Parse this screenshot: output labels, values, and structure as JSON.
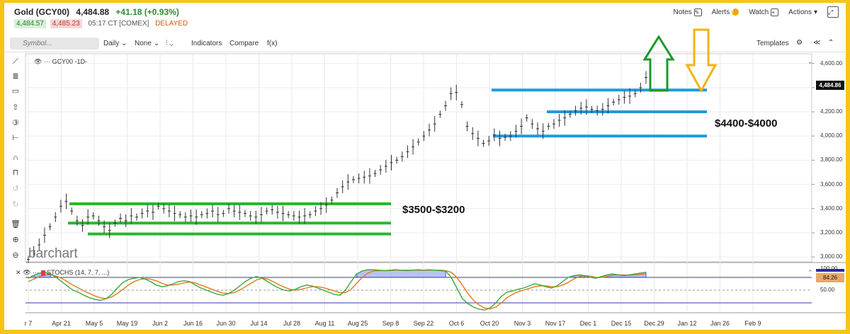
{
  "header": {
    "symbol_title": "Gold (GCY00)",
    "last_price": "4,484.88",
    "change": "+41.18 (+0.93%)",
    "bid": "4,484.57",
    "ask": "4,485.23",
    "time_exchange": "05:17 CT [COMEX]",
    "status": "DELAYED",
    "notes_label": "Notes",
    "alerts_label": "Alerts",
    "alerts_badge": "!",
    "watch_label": "Watch",
    "actions_label": "Actions"
  },
  "toolbar": {
    "symbol_placeholder": "Symbol...",
    "interval": "Daily",
    "compare_type": "None",
    "indicators_label": "Indicators",
    "compare_label": "Compare",
    "fx_label": "f(x)",
    "templates_label": "Templates"
  },
  "main_legend": "GCY00 -1D-",
  "stoch_legend": "STOCHS (14, 7, 7, ...)",
  "watermark": "barchart",
  "price_axis": [
    "4,600.00",
    "4,400.00",
    "4,200.00",
    "4,000.00",
    "3,800.00",
    "3,600.00",
    "3,400.00",
    "3,200.00",
    "3,000.00"
  ],
  "last_tag": "4,484.86",
  "stoch_axis": [
    "100.00",
    "50.00"
  ],
  "stoch_tag": "84.26",
  "annotations": {
    "range_low": "$3500-$3200",
    "range_high": "$4400-$4000"
  },
  "colors": {
    "green_band": "#2db52d",
    "blue_band": "#1e9be0",
    "up_arrow": "#1a9a2a",
    "down_arrow": "#f2b315",
    "stoch_k": "#3aa83a",
    "stoch_d": "#e07b1a",
    "overbought_fill": "#a8b4f0",
    "frame": "#f5c518"
  },
  "chart_data": {
    "type": "line",
    "x_ticks": [
      "r 7",
      "Apr 21",
      "May 5",
      "May 19",
      "Jun 2",
      "Jun 16",
      "Jun 30",
      "Jul 14",
      "Jul 28",
      "Aug 11",
      "Aug 25",
      "Sep 8",
      "Sep 22",
      "Oct 6",
      "Oct 20",
      "Nov 3",
      "Nov 17",
      "Dec 1",
      "Dec 15",
      "Dec 29",
      "Jan 12",
      "Jan 26",
      "Feb 9"
    ],
    "ylim": [
      2960,
      4680
    ],
    "series": [
      {
        "values": [
          2980,
          3050,
          3100,
          3180,
          3250,
          3330,
          3420,
          3460,
          3380,
          3300,
          3260,
          3330,
          3340,
          3300,
          3250,
          3220,
          3280,
          3320,
          3300,
          3340,
          3330,
          3360,
          3380,
          3370,
          3420,
          3400,
          3380,
          3360,
          3350,
          3330,
          3340,
          3330,
          3350,
          3360,
          3380,
          3350,
          3360,
          3400,
          3380,
          3370,
          3360,
          3340,
          3330,
          3350,
          3380,
          3390,
          3370,
          3360,
          3350,
          3340,
          3330,
          3340,
          3350,
          3380,
          3400,
          3430,
          3470,
          3530,
          3580,
          3620,
          3640,
          3650,
          3660,
          3670,
          3690,
          3720,
          3750,
          3780,
          3800,
          3830,
          3870,
          3910,
          3950,
          4000,
          4050,
          4100,
          4180,
          4250,
          4350,
          4360,
          4260,
          4080,
          4020,
          3980,
          3940,
          3960,
          4010,
          3980,
          3990,
          4000,
          4040,
          4080,
          4150,
          4100,
          4060,
          4040,
          4080,
          4100,
          4130,
          4150,
          4180,
          4210,
          4230,
          4240,
          4220,
          4210,
          4220,
          4250,
          4280,
          4300,
          4320,
          4330,
          4350,
          4400,
          4484
        ]
      }
    ],
    "support_resistance": {
      "green_levels": [
        3440,
        3280,
        3190
      ],
      "blue_levels": [
        4380,
        4200,
        4000
      ]
    },
    "stochastics": {
      "ylim": [
        0,
        100
      ],
      "reference_levels": [
        80,
        50,
        20
      ],
      "k": [
        78,
        85,
        90,
        92,
        88,
        80,
        70,
        60,
        50,
        45,
        38,
        32,
        28,
        26,
        30,
        40,
        55,
        68,
        75,
        78,
        80,
        76,
        70,
        62,
        58,
        60,
        65,
        70,
        72,
        70,
        62,
        55,
        50,
        45,
        40,
        38,
        42,
        50,
        60,
        70,
        78,
        82,
        78,
        70,
        62,
        55,
        50,
        48,
        52,
        58,
        62,
        60,
        55,
        50,
        45,
        40,
        38,
        50,
        70,
        88,
        95,
        98,
        98,
        97,
        96,
        97,
        98,
        97,
        96,
        97,
        98,
        97,
        98,
        97,
        96,
        95,
        80,
        55,
        30,
        18,
        10,
        5,
        3,
        8,
        20,
        35,
        45,
        48,
        52,
        55,
        60,
        65,
        62,
        58,
        55,
        60,
        70,
        80,
        84,
        86,
        84,
        80,
        78,
        82,
        86,
        88,
        86,
        84,
        86,
        88,
        90,
        92
      ],
      "d": [
        70,
        76,
        82,
        86,
        86,
        83,
        78,
        70,
        62,
        55,
        48,
        42,
        36,
        32,
        30,
        34,
        42,
        52,
        62,
        70,
        75,
        77,
        76,
        72,
        66,
        62,
        62,
        64,
        67,
        69,
        67,
        62,
        57,
        52,
        47,
        43,
        42,
        44,
        50,
        58,
        66,
        74,
        78,
        76,
        70,
        63,
        57,
        52,
        50,
        52,
        55,
        58,
        58,
        56,
        52,
        48,
        44,
        44,
        52,
        66,
        80,
        90,
        95,
        96,
        96,
        96,
        97,
        97,
        97,
        97,
        97,
        97,
        97,
        97,
        97,
        96,
        92,
        80,
        62,
        42,
        26,
        15,
        8,
        6,
        10,
        20,
        32,
        40,
        46,
        50,
        54,
        58,
        60,
        60,
        58,
        58,
        62,
        68,
        76,
        82,
        84,
        83,
        80,
        80,
        82,
        85,
        86,
        86,
        85,
        86,
        87,
        88
      ]
    }
  }
}
